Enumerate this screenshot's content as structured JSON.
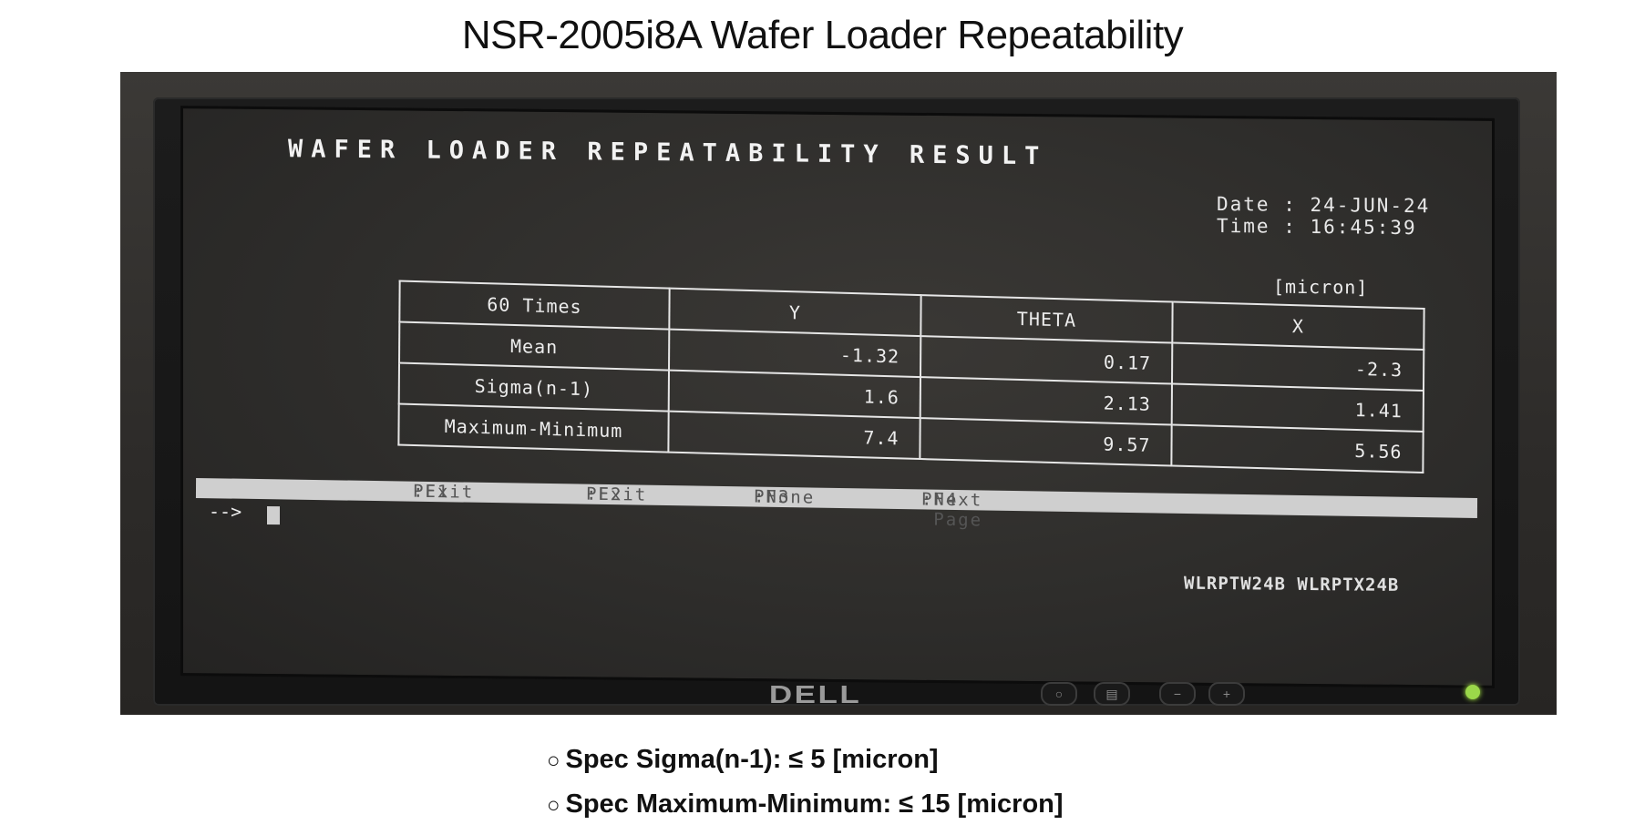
{
  "slide": {
    "title": "NSR-2005i8A Wafer Loader Repeatability"
  },
  "screen": {
    "title": "WAFER LOADER REPEATABILITY RESULT",
    "date_label": "Date",
    "date_value": "24-JUN-24",
    "time_label": "Time",
    "time_value": "16:45:39",
    "unit": "[micron]",
    "table": {
      "headers": [
        "60 Times",
        "Y",
        "THETA",
        "X"
      ],
      "rows": [
        {
          "label": "Mean",
          "y": "-1.32",
          "theta": "0.17",
          "x": "-2.3"
        },
        {
          "label": "Sigma(n-1)",
          "y": "1.6",
          "theta": "2.13",
          "x": "1.41"
        },
        {
          "label": "Maximum-Minimum",
          "y": "7.4",
          "theta": "9.57",
          "x": "5.56"
        }
      ]
    },
    "function_keys": [
      {
        "key": "PF1",
        "action": "Exit"
      },
      {
        "key": "PF2",
        "action": "Exit"
      },
      {
        "key": "PF3",
        "action": "None"
      },
      {
        "key": "PF4",
        "action": "Next Page"
      }
    ],
    "prompt": "-->",
    "program_ids": "WLRPTW24B WLRPTX24B"
  },
  "monitor": {
    "brand": "DELL",
    "power_led_color": "#9bd84a"
  },
  "specs": [
    "Spec Sigma(n-1): ≤ 5 [micron]",
    "Spec Maximum-Minimum: ≤ 15 [micron]"
  ]
}
